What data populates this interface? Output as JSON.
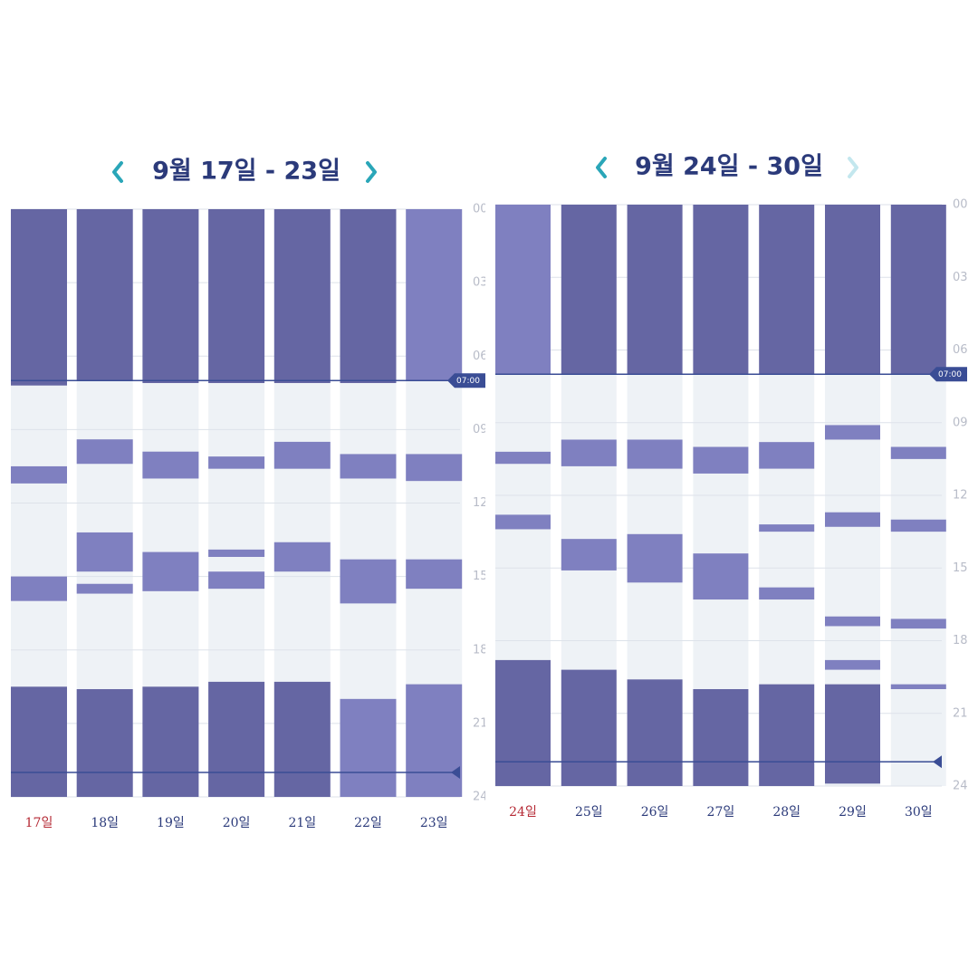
{
  "chart_data": [
    {
      "type": "range",
      "title": "9월 17일 - 23일",
      "ylim": [
        0,
        24
      ],
      "yticks": [
        {
          "value": 0,
          "label": "00"
        },
        {
          "value": 3,
          "label": "03"
        },
        {
          "value": 6,
          "label": "06"
        },
        {
          "value": 9,
          "label": "09"
        },
        {
          "value": 12,
          "label": "12"
        },
        {
          "value": 15,
          "label": "15"
        },
        {
          "value": 18,
          "label": "18"
        },
        {
          "value": 21,
          "label": "21"
        },
        {
          "value": 24,
          "label": "24"
        }
      ],
      "grid": true,
      "categories": [
        "17일",
        "18일",
        "19일",
        "20일",
        "21일",
        "22일",
        "23일"
      ],
      "category_colors": [
        "#b52a35",
        "#2b3a7a",
        "#2b3a7a",
        "#2b3a7a",
        "#2b3a7a",
        "#2b3a7a",
        "#2b3a7a"
      ],
      "markers": [
        {
          "value": 7,
          "label": "07:00"
        },
        {
          "value": 23
        }
      ],
      "bars": [
        [
          {
            "start": 0,
            "end": 7.2,
            "color": "#6566a3"
          },
          {
            "start": 10.5,
            "end": 11.2,
            "color": "#7f80c0"
          },
          {
            "start": 15.0,
            "end": 16.0,
            "color": "#7f80c0"
          },
          {
            "start": 19.5,
            "end": 24,
            "color": "#6566a3"
          }
        ],
        [
          {
            "start": 0,
            "end": 7.0,
            "color": "#6566a3"
          },
          {
            "start": 9.4,
            "end": 10.4,
            "color": "#7f80c0"
          },
          {
            "start": 13.2,
            "end": 14.8,
            "color": "#7f80c0"
          },
          {
            "start": 15.3,
            "end": 15.7,
            "color": "#7f80c0"
          },
          {
            "start": 19.6,
            "end": 24,
            "color": "#6566a3"
          }
        ],
        [
          {
            "start": 0,
            "end": 7.1,
            "color": "#6566a3"
          },
          {
            "start": 9.9,
            "end": 11.0,
            "color": "#7f80c0"
          },
          {
            "start": 14.0,
            "end": 15.6,
            "color": "#7f80c0"
          },
          {
            "start": 19.5,
            "end": 24,
            "color": "#6566a3"
          }
        ],
        [
          {
            "start": 0,
            "end": 7.1,
            "color": "#6566a3"
          },
          {
            "start": 10.1,
            "end": 10.6,
            "color": "#7f80c0"
          },
          {
            "start": 13.9,
            "end": 14.2,
            "color": "#7f80c0"
          },
          {
            "start": 14.8,
            "end": 15.5,
            "color": "#7f80c0"
          },
          {
            "start": 19.3,
            "end": 24,
            "color": "#6566a3"
          }
        ],
        [
          {
            "start": 0,
            "end": 7.1,
            "color": "#6566a3"
          },
          {
            "start": 9.5,
            "end": 10.6,
            "color": "#7f80c0"
          },
          {
            "start": 13.6,
            "end": 14.8,
            "color": "#7f80c0"
          },
          {
            "start": 19.3,
            "end": 24,
            "color": "#6566a3"
          }
        ],
        [
          {
            "start": 0,
            "end": 7.1,
            "color": "#6566a3"
          },
          {
            "start": 10.0,
            "end": 11.0,
            "color": "#7f80c0"
          },
          {
            "start": 14.3,
            "end": 16.1,
            "color": "#7f80c0"
          },
          {
            "start": 20.0,
            "end": 24,
            "color": "#7f80c0"
          }
        ],
        [
          {
            "start": 0,
            "end": 7.0,
            "color": "#7f80c0"
          },
          {
            "start": 10.0,
            "end": 11.1,
            "color": "#7f80c0"
          },
          {
            "start": 14.3,
            "end": 15.5,
            "color": "#7f80c0"
          },
          {
            "start": 19.4,
            "end": 24,
            "color": "#7f80c0"
          }
        ]
      ]
    },
    {
      "type": "range",
      "title": "9월 24일 - 30일",
      "ylim": [
        0,
        24
      ],
      "yticks": [
        {
          "value": 0,
          "label": "00"
        },
        {
          "value": 3,
          "label": "03"
        },
        {
          "value": 6,
          "label": "06"
        },
        {
          "value": 9,
          "label": "09"
        },
        {
          "value": 12,
          "label": "12"
        },
        {
          "value": 15,
          "label": "15"
        },
        {
          "value": 18,
          "label": "18"
        },
        {
          "value": 21,
          "label": "21"
        },
        {
          "value": 24,
          "label": "24"
        }
      ],
      "grid": true,
      "categories": [
        "24일",
        "25일",
        "26일",
        "27일",
        "28일",
        "29일",
        "30일"
      ],
      "category_colors": [
        "#b52a35",
        "#2b3a7a",
        "#2b3a7a",
        "#2b3a7a",
        "#2b3a7a",
        "#2b3a7a",
        "#2b3a7a"
      ],
      "markers": [
        {
          "value": 7,
          "label": "07:00"
        },
        {
          "value": 23
        }
      ],
      "bars": [
        [
          {
            "start": 0,
            "end": 7.0,
            "color": "#7f80c0"
          },
          {
            "start": 10.2,
            "end": 10.7,
            "color": "#7f80c0"
          },
          {
            "start": 12.8,
            "end": 13.4,
            "color": "#7f80c0"
          },
          {
            "start": 18.8,
            "end": 24,
            "color": "#6566a3"
          }
        ],
        [
          {
            "start": 0,
            "end": 7.0,
            "color": "#6566a3"
          },
          {
            "start": 9.7,
            "end": 10.8,
            "color": "#7f80c0"
          },
          {
            "start": 13.8,
            "end": 15.1,
            "color": "#7f80c0"
          },
          {
            "start": 19.2,
            "end": 24,
            "color": "#6566a3"
          }
        ],
        [
          {
            "start": 0,
            "end": 7.0,
            "color": "#6566a3"
          },
          {
            "start": 9.7,
            "end": 10.9,
            "color": "#7f80c0"
          },
          {
            "start": 13.6,
            "end": 15.6,
            "color": "#7f80c0"
          },
          {
            "start": 19.6,
            "end": 24,
            "color": "#6566a3"
          }
        ],
        [
          {
            "start": 0,
            "end": 7.0,
            "color": "#6566a3"
          },
          {
            "start": 10.0,
            "end": 11.1,
            "color": "#7f80c0"
          },
          {
            "start": 14.4,
            "end": 16.3,
            "color": "#7f80c0"
          },
          {
            "start": 20.0,
            "end": 24,
            "color": "#6566a3"
          }
        ],
        [
          {
            "start": 0,
            "end": 7.0,
            "color": "#6566a3"
          },
          {
            "start": 9.8,
            "end": 10.9,
            "color": "#7f80c0"
          },
          {
            "start": 13.2,
            "end": 13.5,
            "color": "#7f80c0"
          },
          {
            "start": 15.8,
            "end": 16.3,
            "color": "#7f80c0"
          },
          {
            "start": 19.8,
            "end": 24,
            "color": "#6566a3"
          }
        ],
        [
          {
            "start": 0,
            "end": 7.0,
            "color": "#6566a3"
          },
          {
            "start": 9.1,
            "end": 9.7,
            "color": "#7f80c0"
          },
          {
            "start": 12.7,
            "end": 13.3,
            "color": "#7f80c0"
          },
          {
            "start": 17.0,
            "end": 17.4,
            "color": "#7f80c0"
          },
          {
            "start": 18.8,
            "end": 19.2,
            "color": "#7f80c0"
          },
          {
            "start": 19.8,
            "end": 23.9,
            "color": "#6566a3"
          }
        ],
        [
          {
            "start": 0,
            "end": 7.0,
            "color": "#6566a3"
          },
          {
            "start": 10.0,
            "end": 10.5,
            "color": "#7f80c0"
          },
          {
            "start": 13.0,
            "end": 13.5,
            "color": "#7f80c0"
          },
          {
            "start": 17.1,
            "end": 17.5,
            "color": "#7f80c0"
          },
          {
            "start": 19.8,
            "end": 20.0,
            "color": "#7f80c0"
          }
        ]
      ]
    }
  ]
}
